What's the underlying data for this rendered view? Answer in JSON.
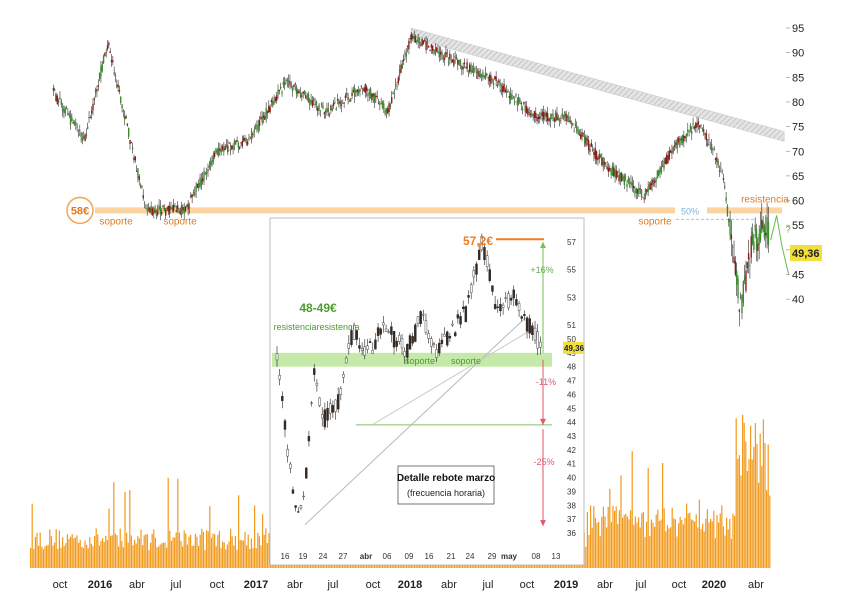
{
  "chart_data": [
    {
      "type": "line",
      "title": "",
      "xlabel": "",
      "ylabel": "",
      "ylim": [
        30,
        96
      ],
      "y_ticks": [
        40,
        45,
        50,
        55,
        60,
        65,
        70,
        75,
        80,
        85,
        90,
        95
      ],
      "x_tick_labels": [
        "oct",
        "2016",
        "abr",
        "jul",
        "oct",
        "2017",
        "abr",
        "jul",
        "oct",
        "2018",
        "abr",
        "jul",
        "oct",
        "2019",
        "abr",
        "jul",
        "oct",
        "2020",
        "abr"
      ],
      "x_tick_bold": [
        false,
        true,
        false,
        false,
        false,
        true,
        false,
        false,
        false,
        true,
        false,
        false,
        false,
        true,
        false,
        false,
        false,
        true,
        false
      ],
      "x": [
        2015.7,
        2015.9,
        2016.05,
        2016.3,
        2016.55,
        2016.75,
        2016.95,
        2017.2,
        2017.45,
        2017.7,
        2017.85,
        2018.0,
        2018.3,
        2018.55,
        2018.8,
        2019.0,
        2019.25,
        2019.5,
        2019.7,
        2019.85,
        2020.0,
        2020.12,
        2020.2,
        2020.3
      ],
      "values": [
        82,
        72,
        92,
        58,
        58,
        70,
        72,
        84,
        78,
        83,
        78,
        93,
        88,
        84,
        77,
        77,
        67,
        61,
        71,
        76,
        66,
        38,
        52,
        54
      ],
      "last_value": "49,36",
      "support_level": 58,
      "support_label": "58€",
      "support_text": "soporte",
      "resistance_text": "resistencia",
      "fib_label": "50%",
      "downtrend_line": {
        "from": [
          2018.0,
          94
        ],
        "to": [
          2020.4,
          73
        ]
      },
      "volume": "orange histogram along the bottom",
      "annotation_mark": "?"
    },
    {
      "type": "line",
      "title": "Detalle rebote marzo",
      "subtitle": "(frecuencia horaria)",
      "ylim": [
        35,
        57.5
      ],
      "y_ticks": [
        36,
        37,
        38,
        39,
        40,
        41,
        42,
        43,
        44,
        45,
        46,
        47,
        48,
        49,
        50,
        51,
        53,
        55,
        57
      ],
      "x_tick_labels": [
        "16",
        "19",
        "24",
        "27",
        "abr",
        "06",
        "09",
        "16",
        "21",
        "24",
        "29",
        "may",
        "08",
        "13"
      ],
      "x_tick_bold": [
        false,
        false,
        false,
        false,
        true,
        false,
        false,
        false,
        false,
        false,
        false,
        true,
        false,
        false
      ],
      "x": [
        0,
        2,
        3,
        4,
        5,
        6,
        8,
        10,
        12,
        14,
        17,
        19,
        21,
        23,
        25,
        27,
        29,
        31,
        33,
        35
      ],
      "values": [
        48.5,
        39.5,
        37,
        41,
        48,
        44,
        45.5,
        50.5,
        49,
        51,
        49,
        51.5,
        49,
        50.5,
        52,
        57.2,
        52,
        53,
        51,
        49.36
      ],
      "peak_label": "57,2€",
      "zone_label": "48-49€",
      "zone_low": 48,
      "zone_high": 49,
      "resistance_text": "resistencia",
      "support_text": "soporte",
      "pct_labels": [
        "+16%",
        "-11%",
        "-25%"
      ],
      "last_value": "49,36"
    }
  ]
}
